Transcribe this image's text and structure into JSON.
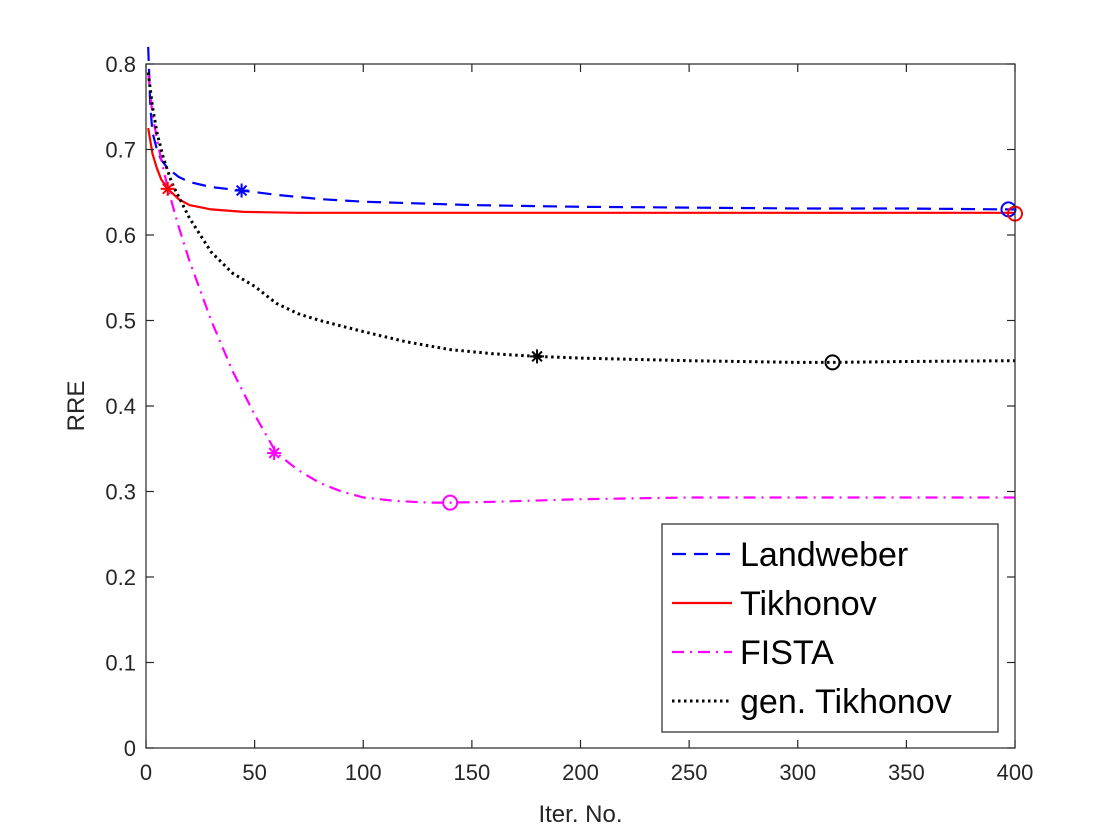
{
  "chart_data": {
    "type": "line",
    "xlabel": "Iter. No.",
    "ylabel": "RRE",
    "xlim": [
      0,
      400
    ],
    "ylim": [
      0,
      0.8
    ],
    "xticks": [
      0,
      50,
      100,
      150,
      200,
      250,
      300,
      350,
      400
    ],
    "yticks": [
      0,
      0.1,
      0.2,
      0.3,
      0.4,
      0.5,
      0.6,
      0.7,
      0.8
    ],
    "xtick_labels": [
      "0",
      "50",
      "100",
      "150",
      "200",
      "250",
      "300",
      "350",
      "400"
    ],
    "ytick_labels": [
      "0",
      "0.1",
      "0.2",
      "0.3",
      "0.4",
      "0.5",
      "0.6",
      "0.7",
      "0.8"
    ],
    "grid": false,
    "legend_position": "bottom-right",
    "series": [
      {
        "name": "Landweber",
        "color": "#0000ff",
        "dash": "dashed",
        "x": [
          1,
          2,
          3,
          5,
          7,
          10,
          15,
          20,
          30,
          44,
          60,
          80,
          100,
          150,
          200,
          250,
          300,
          350,
          397,
          400
        ],
        "y": [
          0.82,
          0.75,
          0.72,
          0.7,
          0.688,
          0.678,
          0.668,
          0.662,
          0.656,
          0.652,
          0.647,
          0.642,
          0.639,
          0.635,
          0.633,
          0.632,
          0.631,
          0.631,
          0.63,
          0.63
        ],
        "star_marker": {
          "x": 44,
          "y": 0.652
        },
        "circle_marker": {
          "x": 397,
          "y": 0.63
        }
      },
      {
        "name": "Tikhonov",
        "color": "#ff0000",
        "dash": "solid",
        "x": [
          1,
          3,
          5,
          7,
          10,
          15,
          20,
          30,
          45,
          70,
          100,
          150,
          200,
          250,
          300,
          350,
          400
        ],
        "y": [
          0.725,
          0.695,
          0.678,
          0.665,
          0.654,
          0.642,
          0.635,
          0.63,
          0.627,
          0.626,
          0.626,
          0.626,
          0.626,
          0.626,
          0.626,
          0.626,
          0.626
        ],
        "star_marker": {
          "x": 10,
          "y": 0.654
        },
        "circle_marker": {
          "x": 400,
          "y": 0.625
        }
      },
      {
        "name": "FISTA",
        "color": "#ff00ff",
        "dash": "dashdot",
        "x": [
          1,
          3,
          6,
          10,
          15,
          20,
          30,
          40,
          50,
          60,
          70,
          80,
          90,
          100,
          115,
          130,
          140,
          160,
          200,
          250,
          300,
          350,
          400
        ],
        "y": [
          0.79,
          0.74,
          0.7,
          0.655,
          0.61,
          0.57,
          0.5,
          0.44,
          0.39,
          0.345,
          0.325,
          0.31,
          0.3,
          0.293,
          0.289,
          0.287,
          0.287,
          0.288,
          0.291,
          0.293,
          0.293,
          0.293,
          0.293
        ],
        "star_marker": {
          "x": 59,
          "y": 0.345
        },
        "circle_marker": {
          "x": 140,
          "y": 0.287
        }
      },
      {
        "name": "gen. Tikhonov",
        "color": "#000000",
        "dash": "dotted",
        "x": [
          1,
          3,
          5,
          8,
          12,
          20,
          30,
          40,
          50,
          60,
          70,
          80,
          100,
          120,
          140,
          160,
          180,
          200,
          250,
          300,
          316,
          350,
          400
        ],
        "y": [
          0.79,
          0.75,
          0.72,
          0.69,
          0.66,
          0.62,
          0.58,
          0.555,
          0.54,
          0.52,
          0.508,
          0.5,
          0.487,
          0.475,
          0.466,
          0.461,
          0.458,
          0.456,
          0.453,
          0.451,
          0.451,
          0.452,
          0.453
        ],
        "star_marker": {
          "x": 180,
          "y": 0.458
        },
        "circle_marker": {
          "x": 316,
          "y": 0.451
        }
      }
    ]
  }
}
